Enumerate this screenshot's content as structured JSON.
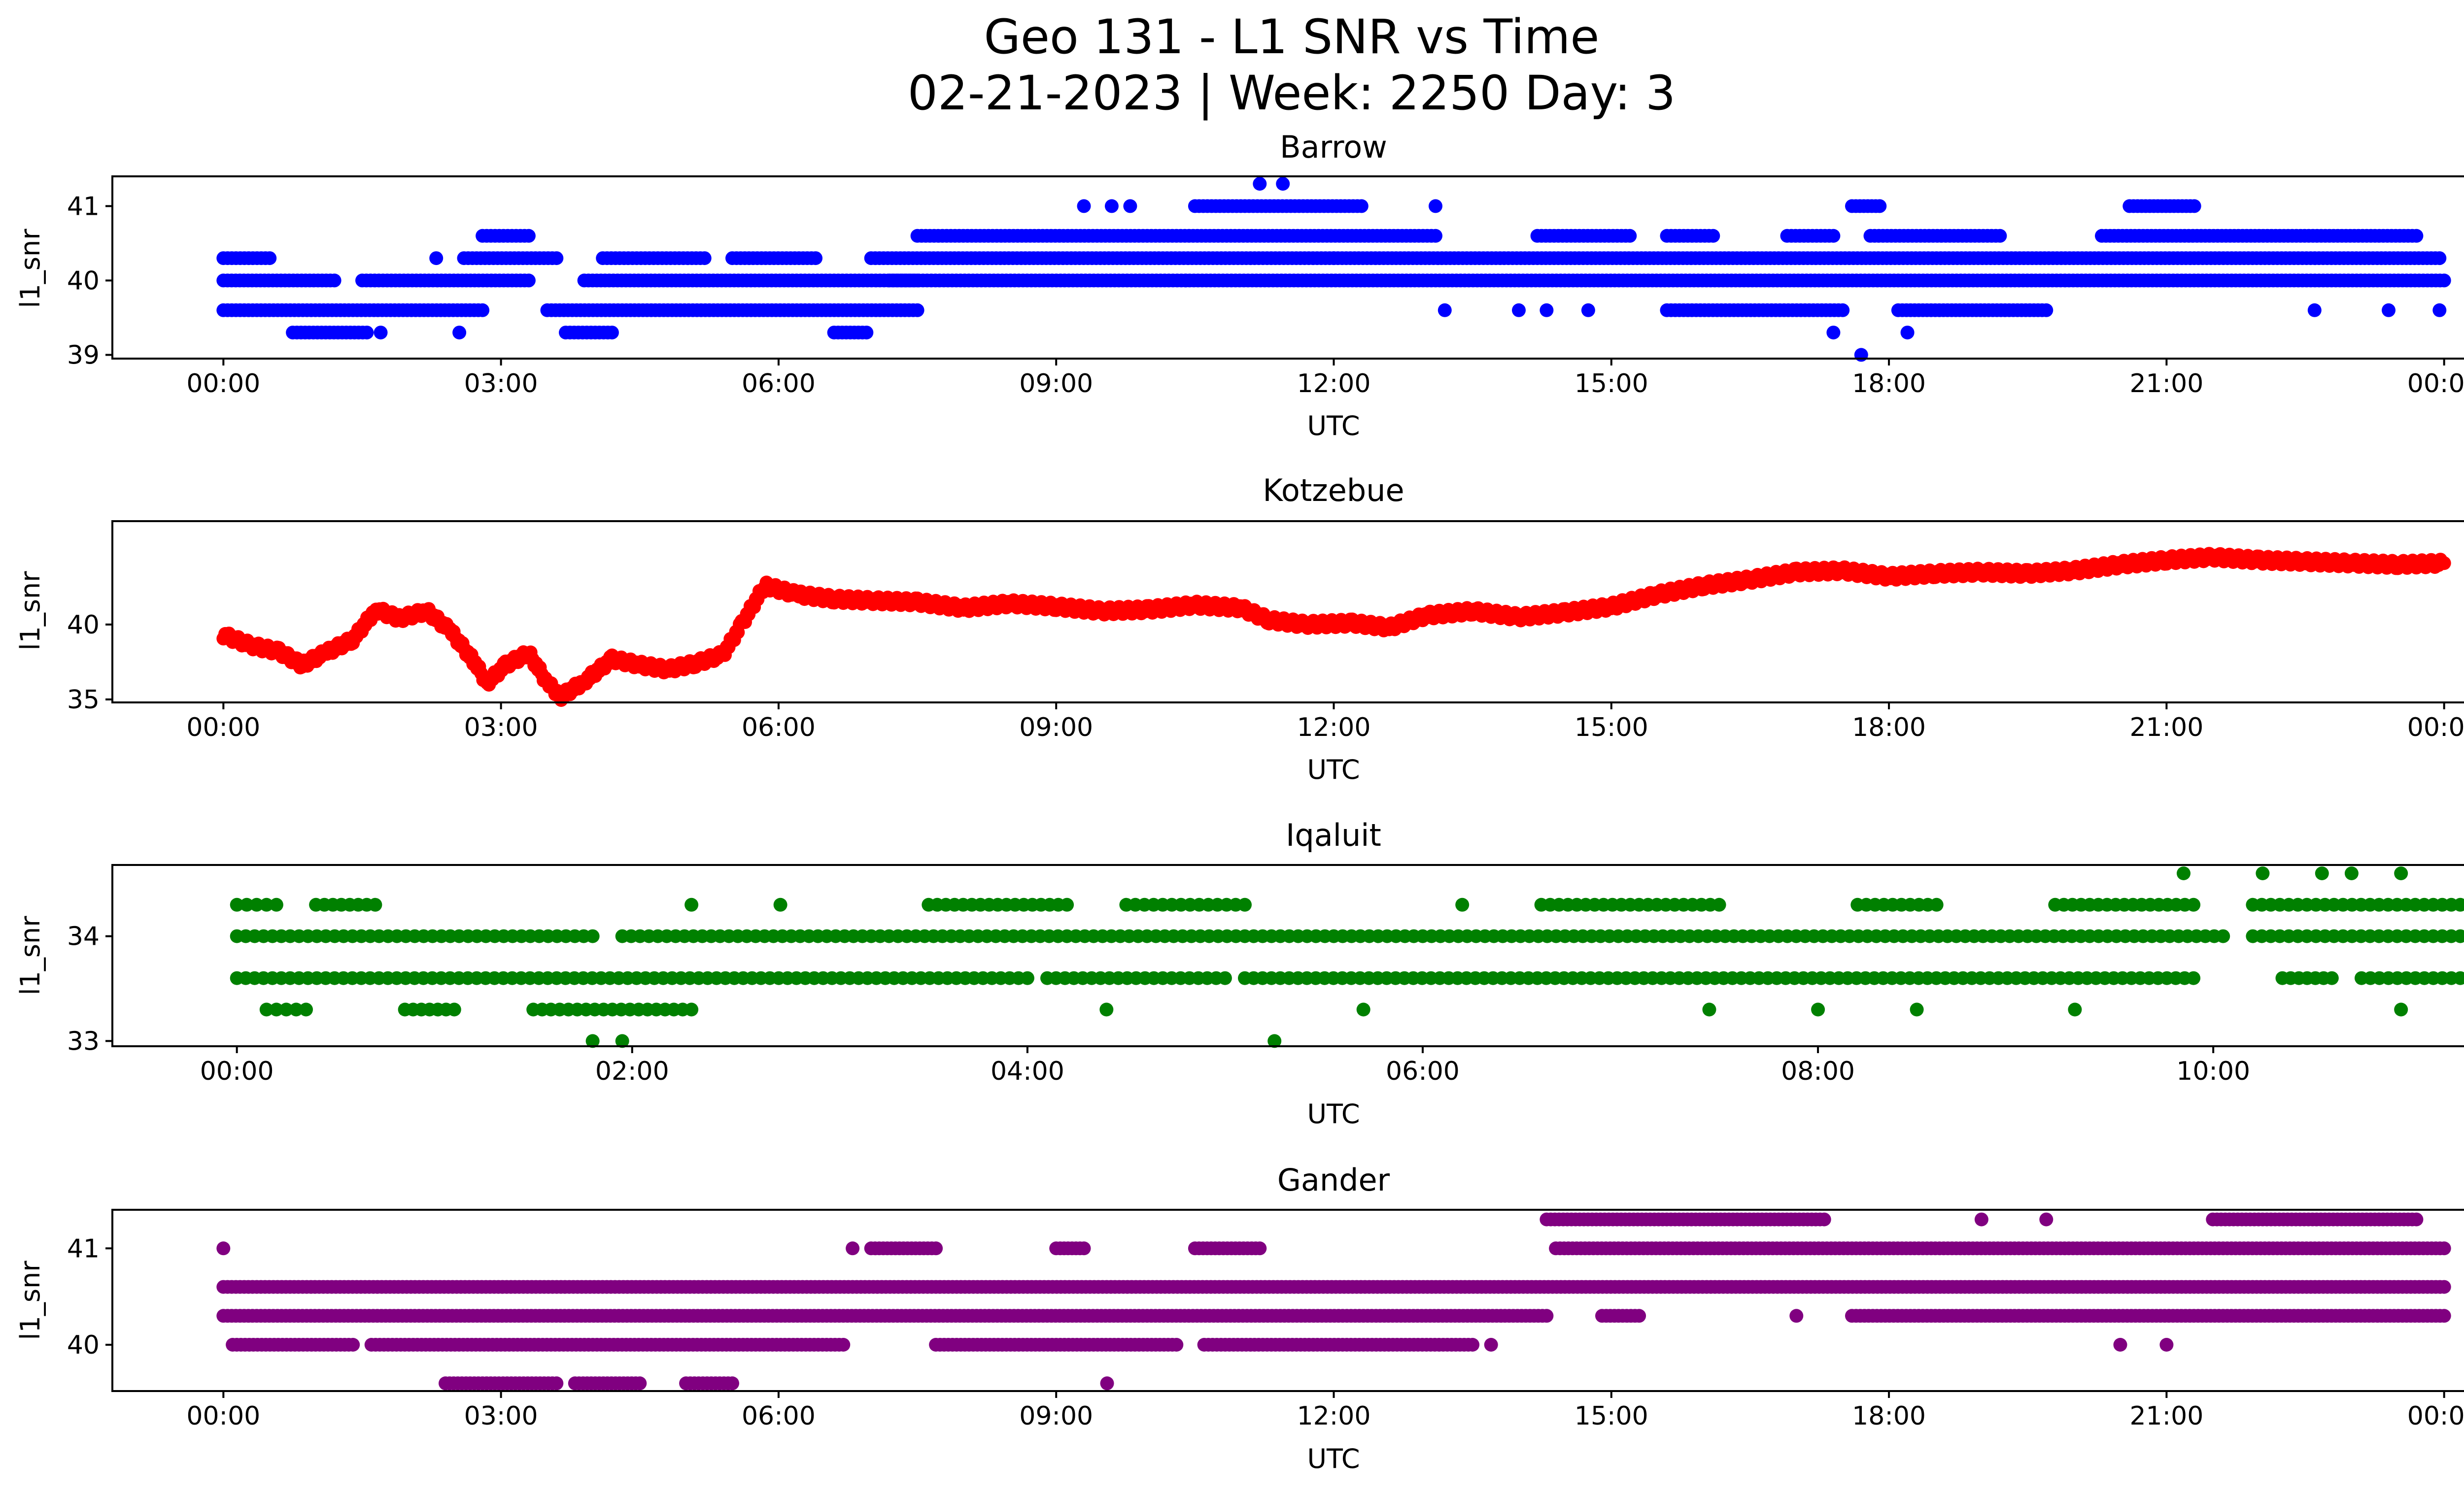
{
  "figure": {
    "title_line1": "Geo 131 - L1 SNR vs Time",
    "title_line2": "02-21-2023 | Week: 2250 Day: 3"
  },
  "chart_data": [
    {
      "type": "scatter",
      "title": "Barrow",
      "xlabel": "UTC",
      "ylabel": "l1_snr",
      "color": "#0000ff",
      "x_unit": "hours UTC",
      "xlim": [
        -1.2,
        25.2
      ],
      "ylim": [
        38.95,
        41.4
      ],
      "x_ticks": [
        0,
        3,
        6,
        9,
        12,
        15,
        18,
        21,
        24
      ],
      "x_tick_labels": [
        "00:00",
        "03:00",
        "06:00",
        "09:00",
        "12:00",
        "15:00",
        "18:00",
        "21:00",
        "00:00"
      ],
      "y_ticks": [
        39,
        40,
        41
      ],
      "y_tick_labels": [
        "39",
        "40",
        "41"
      ],
      "levels": [
        39.0,
        39.3,
        39.6,
        40.0,
        40.3,
        40.6,
        41.0,
        41.3
      ],
      "segments": [
        {
          "level": 40.3,
          "ranges": [
            [
              0.0,
              0.5
            ],
            [
              2.6,
              3.6
            ],
            [
              4.1,
              5.2
            ],
            [
              5.5,
              6.4
            ],
            [
              7.0,
              12.0
            ],
            [
              12.0,
              23.95
            ]
          ]
        },
        {
          "level": 40.0,
          "ranges": [
            [
              0.0,
              1.2
            ],
            [
              1.5,
              3.3
            ],
            [
              3.9,
              7.5
            ],
            [
              7.2,
              24.0
            ]
          ]
        },
        {
          "level": 39.6,
          "ranges": [
            [
              0.0,
              2.8
            ],
            [
              3.5,
              7.5
            ],
            [
              15.6,
              17.5
            ],
            [
              18.1,
              19.7
            ]
          ]
        },
        {
          "level": 39.3,
          "ranges": [
            [
              0.75,
              1.55
            ],
            [
              3.7,
              4.2
            ],
            [
              6.6,
              6.95
            ]
          ]
        },
        {
          "level": 40.6,
          "ranges": [
            [
              2.8,
              3.3
            ],
            [
              7.5,
              13.1
            ],
            [
              14.2,
              15.2
            ],
            [
              15.6,
              16.1
            ],
            [
              16.9,
              17.4
            ],
            [
              17.8,
              19.2
            ],
            [
              20.3,
              23.7
            ]
          ]
        },
        {
          "level": 41.0,
          "ranges": [
            [
              10.5,
              12.3
            ],
            [
              17.6,
              17.9
            ],
            [
              20.6,
              21.3
            ]
          ]
        }
      ],
      "points": [
        {
          "x": 1.7,
          "y": 39.3
        },
        {
          "x": 2.3,
          "y": 40.3
        },
        {
          "x": 2.55,
          "y": 39.3
        },
        {
          "x": 9.3,
          "y": 41.0
        },
        {
          "x": 9.6,
          "y": 41.0
        },
        {
          "x": 9.8,
          "y": 41.0
        },
        {
          "x": 10.4,
          "y": 40.0
        },
        {
          "x": 11.2,
          "y": 41.3
        },
        {
          "x": 11.45,
          "y": 41.3
        },
        {
          "x": 13.1,
          "y": 41.0
        },
        {
          "x": 13.2,
          "y": 39.6
        },
        {
          "x": 14.0,
          "y": 39.6
        },
        {
          "x": 14.3,
          "y": 39.6
        },
        {
          "x": 14.75,
          "y": 39.6
        },
        {
          "x": 17.4,
          "y": 39.3
        },
        {
          "x": 17.7,
          "y": 39.0
        },
        {
          "x": 18.2,
          "y": 39.3
        },
        {
          "x": 22.6,
          "y": 39.6
        },
        {
          "x": 23.4,
          "y": 39.6
        },
        {
          "x": 23.95,
          "y": 39.6
        }
      ]
    },
    {
      "type": "scatter",
      "title": "Kotzebue",
      "xlabel": "UTC",
      "ylabel": "l1_snr",
      "color": "#ff0000",
      "x_unit": "hours UTC",
      "xlim": [
        -1.2,
        25.2
      ],
      "ylim": [
        34.8,
        46.9
      ],
      "x_ticks": [
        0,
        3,
        6,
        9,
        12,
        15,
        18,
        21,
        24
      ],
      "x_tick_labels": [
        "00:00",
        "03:00",
        "06:00",
        "09:00",
        "12:00",
        "15:00",
        "18:00",
        "21:00",
        "00:00"
      ],
      "y_ticks": [
        35,
        40
      ],
      "y_tick_labels": [
        "35",
        "40"
      ],
      "trace": [
        [
          0.0,
          39.3
        ],
        [
          0.3,
          38.6
        ],
        [
          0.6,
          38.2
        ],
        [
          0.85,
          37.3
        ],
        [
          1.1,
          38.1
        ],
        [
          1.4,
          39.0
        ],
        [
          1.65,
          41.0
        ],
        [
          1.9,
          40.4
        ],
        [
          2.2,
          40.9
        ],
        [
          2.45,
          39.6
        ],
        [
          2.7,
          37.6
        ],
        [
          2.85,
          36.1
        ],
        [
          3.05,
          37.3
        ],
        [
          3.3,
          38.1
        ],
        [
          3.5,
          36.1
        ],
        [
          3.65,
          35.2
        ],
        [
          3.9,
          36.2
        ],
        [
          4.2,
          37.7
        ],
        [
          4.5,
          37.3
        ],
        [
          4.8,
          37.0
        ],
        [
          5.1,
          37.4
        ],
        [
          5.4,
          38.0
        ],
        [
          5.6,
          40.0
        ],
        [
          5.85,
          42.6
        ],
        [
          6.2,
          42.0
        ],
        [
          6.6,
          41.7
        ],
        [
          7.0,
          41.6
        ],
        [
          7.5,
          41.5
        ],
        [
          8.0,
          41.1
        ],
        [
          8.5,
          41.4
        ],
        [
          9.0,
          41.2
        ],
        [
          9.5,
          40.9
        ],
        [
          10.0,
          41.0
        ],
        [
          10.5,
          41.3
        ],
        [
          11.0,
          41.1
        ],
        [
          11.3,
          40.3
        ],
        [
          11.7,
          40.0
        ],
        [
          12.2,
          40.1
        ],
        [
          12.6,
          39.8
        ],
        [
          13.0,
          40.6
        ],
        [
          13.5,
          40.9
        ],
        [
          14.0,
          40.5
        ],
        [
          14.5,
          40.8
        ],
        [
          15.0,
          41.2
        ],
        [
          15.5,
          42.0
        ],
        [
          16.0,
          42.6
        ],
        [
          16.5,
          43.0
        ],
        [
          17.0,
          43.5
        ],
        [
          17.5,
          43.6
        ],
        [
          18.0,
          43.2
        ],
        [
          18.5,
          43.4
        ],
        [
          19.0,
          43.5
        ],
        [
          19.5,
          43.4
        ],
        [
          20.0,
          43.6
        ],
        [
          20.5,
          44.0
        ],
        [
          21.0,
          44.3
        ],
        [
          21.5,
          44.5
        ],
        [
          22.0,
          44.3
        ],
        [
          22.5,
          44.2
        ],
        [
          23.0,
          44.1
        ],
        [
          23.5,
          44.0
        ],
        [
          24.0,
          44.1
        ]
      ]
    },
    {
      "type": "scatter",
      "title": "Iqaluit",
      "xlabel": "UTC",
      "ylabel": "l1_snr",
      "color": "#008000",
      "x_unit": "hours UTC",
      "xlim": [
        -0.63,
        11.73
      ],
      "ylim": [
        32.95,
        34.68
      ],
      "x_ticks": [
        0,
        2,
        4,
        6,
        8,
        10
      ],
      "x_tick_labels": [
        "00:00",
        "02:00",
        "04:00",
        "06:00",
        "08:00",
        "10:00"
      ],
      "y_ticks": [
        33,
        34
      ],
      "y_tick_labels": [
        "33",
        "34"
      ],
      "levels": [
        33.0,
        33.3,
        33.6,
        34.0,
        34.3,
        34.6
      ],
      "segments": [
        {
          "level": 34.0,
          "ranges": [
            [
              0.0,
              1.8
            ],
            [
              1.95,
              10.05
            ],
            [
              10.2,
              11.25
            ]
          ]
        },
        {
          "level": 33.6,
          "ranges": [
            [
              0.0,
              4.0
            ],
            [
              4.1,
              5.0
            ],
            [
              5.1,
              9.9
            ],
            [
              10.35,
              10.6
            ],
            [
              10.75,
              11.25
            ]
          ]
        },
        {
          "level": 34.3,
          "ranges": [
            [
              0.0,
              0.2
            ],
            [
              0.4,
              0.7
            ],
            [
              3.5,
              4.2
            ],
            [
              4.5,
              5.1
            ],
            [
              6.6,
              7.5
            ],
            [
              8.2,
              8.6
            ],
            [
              9.2,
              9.9
            ],
            [
              10.2,
              11.25
            ]
          ]
        },
        {
          "level": 33.3,
          "ranges": [
            [
              0.15,
              0.35
            ],
            [
              0.85,
              1.1
            ],
            [
              1.5,
              2.3
            ]
          ]
        }
      ],
      "points": [
        {
          "x": 1.8,
          "y": 33.0
        },
        {
          "x": 1.95,
          "y": 33.0
        },
        {
          "x": 5.25,
          "y": 33.0
        },
        {
          "x": 9.85,
          "y": 34.6
        },
        {
          "x": 10.25,
          "y": 34.6
        },
        {
          "x": 10.55,
          "y": 34.6
        },
        {
          "x": 10.7,
          "y": 34.6
        },
        {
          "x": 10.95,
          "y": 34.6
        },
        {
          "x": 10.95,
          "y": 33.3
        },
        {
          "x": 4.4,
          "y": 33.3
        },
        {
          "x": 5.7,
          "y": 33.3
        },
        {
          "x": 7.45,
          "y": 33.3
        },
        {
          "x": 8.0,
          "y": 33.3
        },
        {
          "x": 8.5,
          "y": 33.3
        },
        {
          "x": 9.3,
          "y": 33.3
        },
        {
          "x": 2.3,
          "y": 34.3
        },
        {
          "x": 2.75,
          "y": 34.3
        },
        {
          "x": 6.2,
          "y": 34.3
        }
      ]
    },
    {
      "type": "scatter",
      "title": "Gander",
      "xlabel": "UTC",
      "ylabel": "l1_snr",
      "color": "#800080",
      "x_unit": "hours UTC",
      "xlim": [
        -1.2,
        25.2
      ],
      "ylim": [
        39.52,
        41.4
      ],
      "x_ticks": [
        0,
        3,
        6,
        9,
        12,
        15,
        18,
        21,
        24
      ],
      "x_tick_labels": [
        "00:00",
        "03:00",
        "06:00",
        "09:00",
        "12:00",
        "15:00",
        "18:00",
        "21:00",
        "00:00"
      ],
      "y_ticks": [
        40,
        41
      ],
      "y_tick_labels": [
        "40",
        "41"
      ],
      "levels": [
        39.6,
        40.0,
        40.3,
        40.6,
        41.0,
        41.3
      ],
      "segments": [
        {
          "level": 40.6,
          "ranges": [
            [
              0.0,
              24.0
            ]
          ]
        },
        {
          "level": 40.3,
          "ranges": [
            [
              0.0,
              14.3
            ],
            [
              14.9,
              15.3
            ],
            [
              17.6,
              24.0
            ]
          ]
        },
        {
          "level": 40.0,
          "ranges": [
            [
              0.1,
              1.4
            ],
            [
              1.6,
              6.7
            ],
            [
              7.7,
              10.3
            ],
            [
              10.6,
              13.5
            ]
          ]
        },
        {
          "level": 41.0,
          "ranges": [
            [
              7.0,
              7.7
            ],
            [
              9.0,
              9.3
            ],
            [
              10.5,
              11.2
            ],
            [
              14.4,
              24.0
            ]
          ]
        },
        {
          "level": 41.3,
          "ranges": [
            [
              14.3,
              17.3
            ],
            [
              21.5,
              23.7
            ]
          ]
        },
        {
          "level": 39.6,
          "ranges": [
            [
              2.4,
              3.6
            ],
            [
              3.8,
              4.5
            ],
            [
              5.0,
              5.5
            ]
          ]
        }
      ],
      "points": [
        {
          "x": 0.0,
          "y": 41.0
        },
        {
          "x": 6.8,
          "y": 41.0
        },
        {
          "x": 9.55,
          "y": 39.6
        },
        {
          "x": 13.7,
          "y": 40.0
        },
        {
          "x": 17.0,
          "y": 40.3
        },
        {
          "x": 20.5,
          "y": 40.0
        },
        {
          "x": 21.0,
          "y": 40.0
        },
        {
          "x": 19.0,
          "y": 41.3
        },
        {
          "x": 19.7,
          "y": 41.3
        }
      ]
    }
  ]
}
